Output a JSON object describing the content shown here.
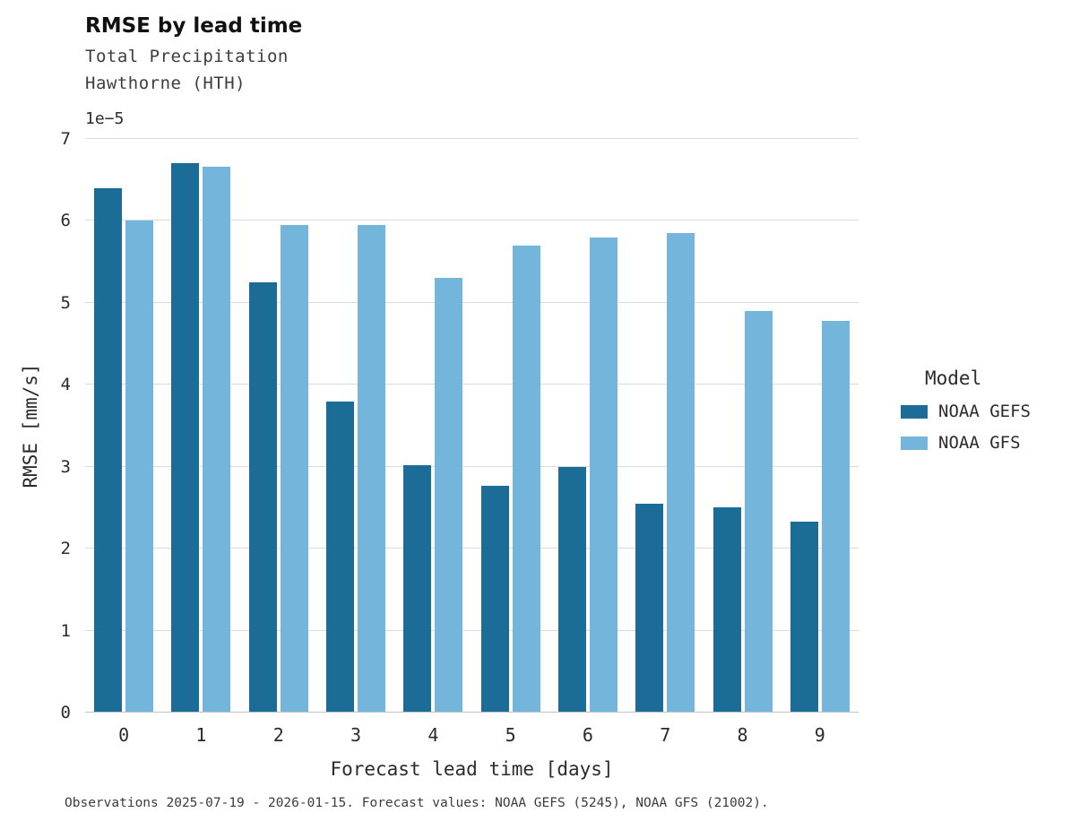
{
  "chart_data": {
    "type": "bar",
    "title": "RMSE by lead time",
    "subtitle_line1": "Total Precipitation",
    "subtitle_line2": "Hawthorne (HTH)",
    "y_offset_label": "1e−5",
    "xlabel": "Forecast lead time [days]",
    "ylabel": "RMSE [mm/s]",
    "ylim": [
      0,
      7
    ],
    "yticks": [
      0,
      1,
      2,
      3,
      4,
      5,
      6,
      7
    ],
    "categories": [
      "0",
      "1",
      "2",
      "3",
      "4",
      "5",
      "6",
      "7",
      "8",
      "9"
    ],
    "grid": "horizontal",
    "legend_position": "right",
    "legend_title": "Model",
    "series": [
      {
        "name": "NOAA GEFS",
        "color": "#1b6d98",
        "values": [
          6.4,
          6.7,
          5.25,
          3.8,
          3.02,
          2.77,
          3.0,
          2.55,
          2.51,
          2.33
        ]
      },
      {
        "name": "NOAA GFS",
        "color": "#73b5db",
        "values": [
          6.0,
          6.66,
          5.95,
          5.95,
          5.3,
          5.7,
          5.8,
          5.85,
          4.9,
          4.78
        ]
      }
    ],
    "caption": "Observations 2025-07-19 - 2026-01-15. Forecast values: NOAA GEFS (5245), NOAA GFS (21002)."
  }
}
